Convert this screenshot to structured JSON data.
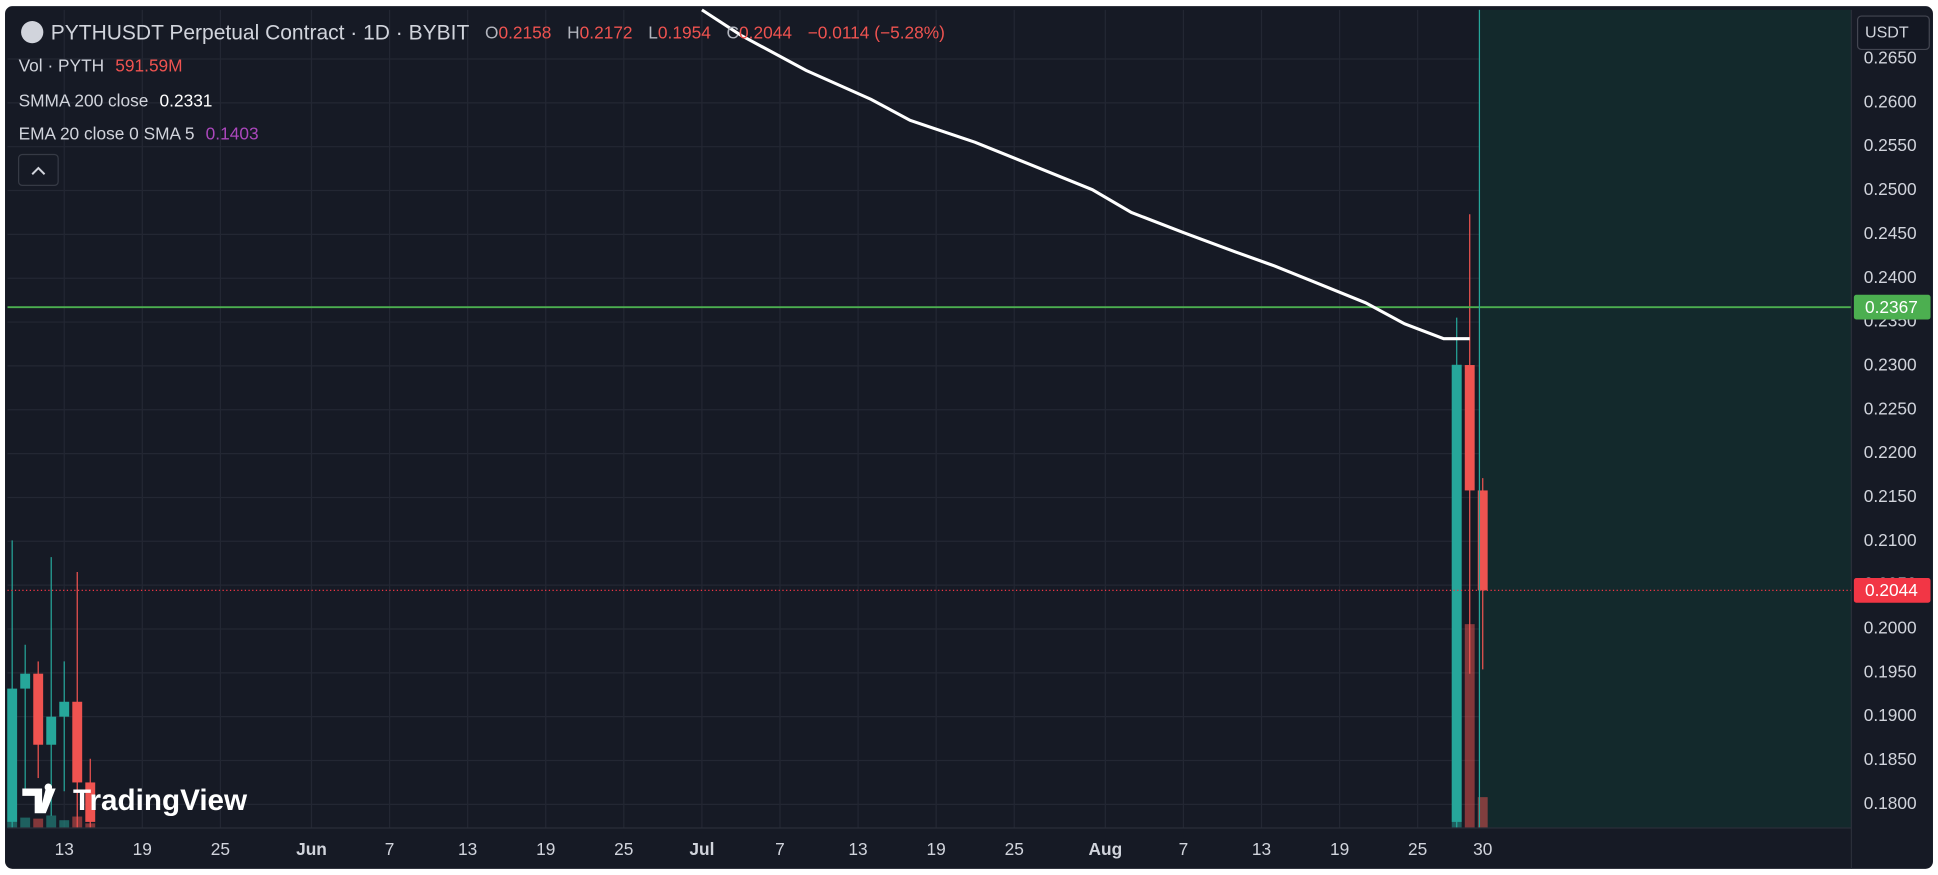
{
  "header": {
    "symbol": "PYTHUSDT Perpetual Contract · 1D · BYBIT",
    "ohlc": [
      {
        "label": "O",
        "value": "0.2158"
      },
      {
        "label": "H",
        "value": "0.2172"
      },
      {
        "label": "L",
        "value": "0.1954"
      },
      {
        "label": "C",
        "value": "0.2044"
      }
    ],
    "change": "−0.0114 (−5.28%)"
  },
  "indicators": [
    {
      "name": "Vol · PYTH",
      "value": "591.59M"
    },
    {
      "name": "SMMA 200 close",
      "value": "0.2331"
    },
    {
      "name": "EMA 20 close 0 SMA 5",
      "value": "0.1403"
    }
  ],
  "currency": "USDT",
  "logo": "TradingView",
  "chart_data": {
    "type": "candlestick",
    "up_color": "#26a69a",
    "down_color": "#ef5350",
    "x": [
      8,
      9,
      10,
      11,
      12,
      13,
      14,
      119,
      120,
      121
    ],
    "open": [
      0.178,
      0.1932,
      0.1949,
      0.1868,
      0.19,
      0.1917,
      0.1825,
      0.178,
      0.2301,
      0.2158
    ],
    "high": [
      0.2101,
      0.1982,
      0.1963,
      0.2082,
      0.1963,
      0.2065,
      0.1852,
      0.2355,
      0.2473,
      0.2172
    ],
    "low": [
      0.1773,
      0.1815,
      0.183,
      0.1787,
      0.1815,
      0.1773,
      0.1773,
      0.1773,
      0.1949,
      0.1954
    ],
    "close": [
      0.1932,
      0.1949,
      0.1868,
      0.19,
      0.1917,
      0.1825,
      0.178,
      0.2301,
      0.2158,
      0.2044
    ],
    "volume": [
      120,
      200,
      180,
      240,
      150,
      220,
      90,
      8874,
      3904,
      591.59
    ],
    "ma_line": {
      "color": "#ffffff",
      "x": [
        61,
        64,
        69,
        74,
        77,
        82,
        86,
        91,
        94,
        98,
        102,
        105,
        108,
        112,
        115,
        118,
        120
      ],
      "values": [
        0.2706,
        0.2677,
        0.2637,
        0.2604,
        0.258,
        0.2555,
        0.2531,
        0.2501,
        0.2475,
        0.2452,
        0.243,
        0.2414,
        0.2396,
        0.2372,
        0.2348,
        0.2331,
        0.2331
      ]
    },
    "levels": [
      {
        "value": 0.2367,
        "color": "#4caf50",
        "style": "solid"
      },
      {
        "value": 0.2044,
        "color": "#f23645",
        "style": "dotted"
      }
    ],
    "xlim": [
      7.64,
      149.33
    ],
    "ylim": [
      0.1773,
      0.2706
    ],
    "grid": true,
    "xticks": [
      {
        "value": 12,
        "label": "13"
      },
      {
        "value": 18,
        "label": "19"
      },
      {
        "value": 24,
        "label": "25"
      },
      {
        "value": 31,
        "label": "Jun"
      },
      {
        "value": 37,
        "label": "7"
      },
      {
        "value": 43,
        "label": "13"
      },
      {
        "value": 49,
        "label": "19"
      },
      {
        "value": 55,
        "label": "25"
      },
      {
        "value": 61,
        "label": "Jul"
      },
      {
        "value": 67,
        "label": "7"
      },
      {
        "value": 73,
        "label": "13"
      },
      {
        "value": 79,
        "label": "19"
      },
      {
        "value": 85,
        "label": "25"
      },
      {
        "value": 92,
        "label": "Aug"
      },
      {
        "value": 98,
        "label": "7"
      },
      {
        "value": 104,
        "label": "13"
      },
      {
        "value": 110,
        "label": "19"
      },
      {
        "value": 116,
        "label": "25"
      },
      {
        "value": 121,
        "label": "30"
      }
    ],
    "yticks": [
      {
        "value": 0.18,
        "label": "0.1800"
      },
      {
        "value": 0.185,
        "label": "0.1850"
      },
      {
        "value": 0.19,
        "label": "0.1900"
      },
      {
        "value": 0.195,
        "label": "0.1950"
      },
      {
        "value": 0.2,
        "label": "0.2000"
      },
      {
        "value": 0.205,
        "label": "0.2050"
      },
      {
        "value": 0.21,
        "label": "0.2100"
      },
      {
        "value": 0.215,
        "label": "0.2150"
      },
      {
        "value": 0.22,
        "label": "0.2200"
      },
      {
        "value": 0.225,
        "label": "0.2250"
      },
      {
        "value": 0.23,
        "label": "0.2300"
      },
      {
        "value": 0.235,
        "label": "0.2350"
      },
      {
        "value": 0.24,
        "label": "0.2400"
      },
      {
        "value": 0.245,
        "label": "0.2450"
      },
      {
        "value": 0.25,
        "label": "0.2500"
      },
      {
        "value": 0.255,
        "label": "0.2550"
      },
      {
        "value": 0.26,
        "label": "0.2600"
      },
      {
        "value": 0.265,
        "label": "0.2650"
      }
    ]
  }
}
